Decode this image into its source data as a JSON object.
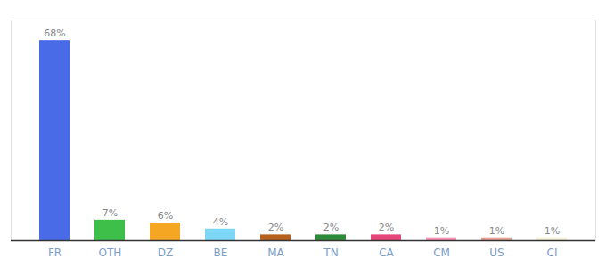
{
  "chart_data": {
    "type": "bar",
    "categories": [
      "FR",
      "OTH",
      "DZ",
      "BE",
      "MA",
      "TN",
      "CA",
      "CM",
      "US",
      "CI"
    ],
    "values": [
      68,
      7,
      6,
      4,
      2,
      2,
      2,
      1,
      1,
      1
    ],
    "value_labels": [
      "68%",
      "7%",
      "6%",
      "4%",
      "2%",
      "2%",
      "2%",
      "1%",
      "1%",
      "1%"
    ],
    "colors": [
      "#4A6BE8",
      "#3DBF4A",
      "#F5A623",
      "#7DD6F5",
      "#B5621E",
      "#2E8B3A",
      "#E8457A",
      "#F48FB1",
      "#E8A090",
      "#F5F0D8"
    ],
    "ylim": [
      0,
      75
    ],
    "data_labels": true,
    "tick_labels": "x"
  }
}
